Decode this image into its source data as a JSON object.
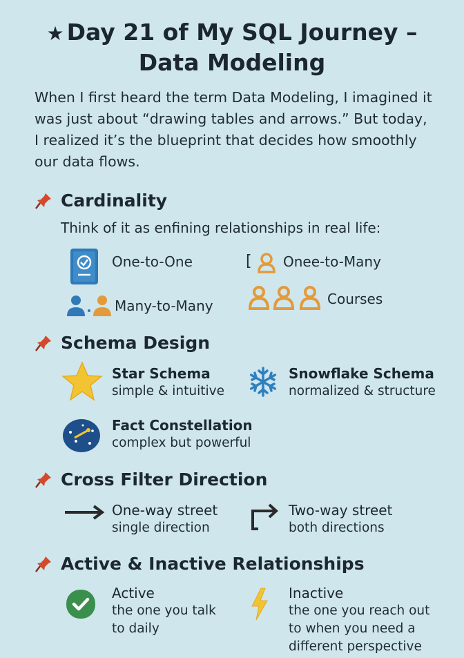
{
  "title": {
    "star": "★",
    "line1": "Day 21 of My SQL Journey –",
    "line2": "Data Modeling"
  },
  "intro": "When I first heard the term Data Modeling, I imagined it was just about “drawing tables and arrows.” But today, I realized it’s the blueprint that decides how smoothly our data flows.",
  "sections": {
    "cardinality": {
      "heading": "Cardinality",
      "subtext": "Think of it as enfining relationships in real life:",
      "items": {
        "one_to_one": "One-to-One",
        "one_to_many": "Onee-to-Many",
        "one_to_many_prefix": "[",
        "many_to_many": "Many-to-Many",
        "courses": "Courses"
      }
    },
    "schema": {
      "heading": "Schema Design",
      "star_title": "Star Schema",
      "star_desc": "simple & intuitive",
      "snow_title": "Snowflake Schema",
      "snow_desc": "normalized & structure",
      "fact_title": "Fact Constellation",
      "fact_desc": "complex but powerful"
    },
    "cross": {
      "heading": "Cross Filter Direction",
      "one_title": "One-way street",
      "one_desc": "single direction",
      "two_title": "Two-way street",
      "two_desc": "both directions"
    },
    "active": {
      "heading": "Active & Inactive Relationships",
      "active_title": "Active",
      "active_desc1": "the one you talk",
      "active_desc2": "to daily",
      "inactive_title": "Inactive",
      "inactive_desc1": "the one you reach out",
      "inactive_desc2": "to when you need a",
      "inactive_desc3": "different perspective"
    }
  },
  "colors": {
    "background": "#cfe6ec",
    "pin": "#d4492b",
    "orange": "#e39a3b",
    "blue": "#2d7ab8",
    "green": "#3b8f4c",
    "yellow": "#f3c432"
  }
}
